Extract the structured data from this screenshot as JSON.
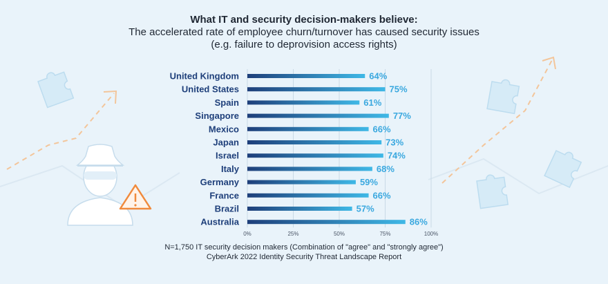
{
  "title": "What IT and security decision-makers believe:",
  "subtitle_line1": "The accelerated rate of employee churn/turnover has caused security issues",
  "subtitle_line2": "(e.g. failure to deprovision access rights)",
  "footnote_line1": "N=1,750 IT security decision makers (Combination of \"agree\" and \"strongly agree\")",
  "footnote_line2": "CyberArk 2022 Identity Security Threat Landscape Report",
  "colors": {
    "bar_start": "#1e3f7a",
    "bar_end": "#3fb8e6",
    "label": "#1e3f7a",
    "value": "#3aa8df",
    "grid": "#c9d9e6"
  },
  "icons": [
    "puzzle-piece-icon",
    "hacker-icon",
    "warning-icon",
    "dashed-arrow-icon"
  ],
  "chart_data": {
    "type": "bar",
    "orientation": "horizontal",
    "categories": [
      "United Kingdom",
      "United States",
      "Spain",
      "Singapore",
      "Mexico",
      "Japan",
      "Israel",
      "Italy",
      "Germany",
      "France",
      "Brazil",
      "Australia"
    ],
    "values": [
      64,
      75,
      61,
      77,
      66,
      73,
      74,
      68,
      59,
      66,
      57,
      86
    ],
    "value_labels": [
      "64%",
      "75%",
      "61%",
      "77%",
      "66%",
      "73%",
      "74%",
      "68%",
      "59%",
      "66%",
      "57%",
      "86%"
    ],
    "xlim": [
      0,
      100
    ],
    "xticks": [
      0,
      25,
      50,
      75,
      100
    ],
    "xtick_labels": [
      "0%",
      "25%",
      "50%",
      "75%",
      "100%"
    ],
    "grid": true
  }
}
